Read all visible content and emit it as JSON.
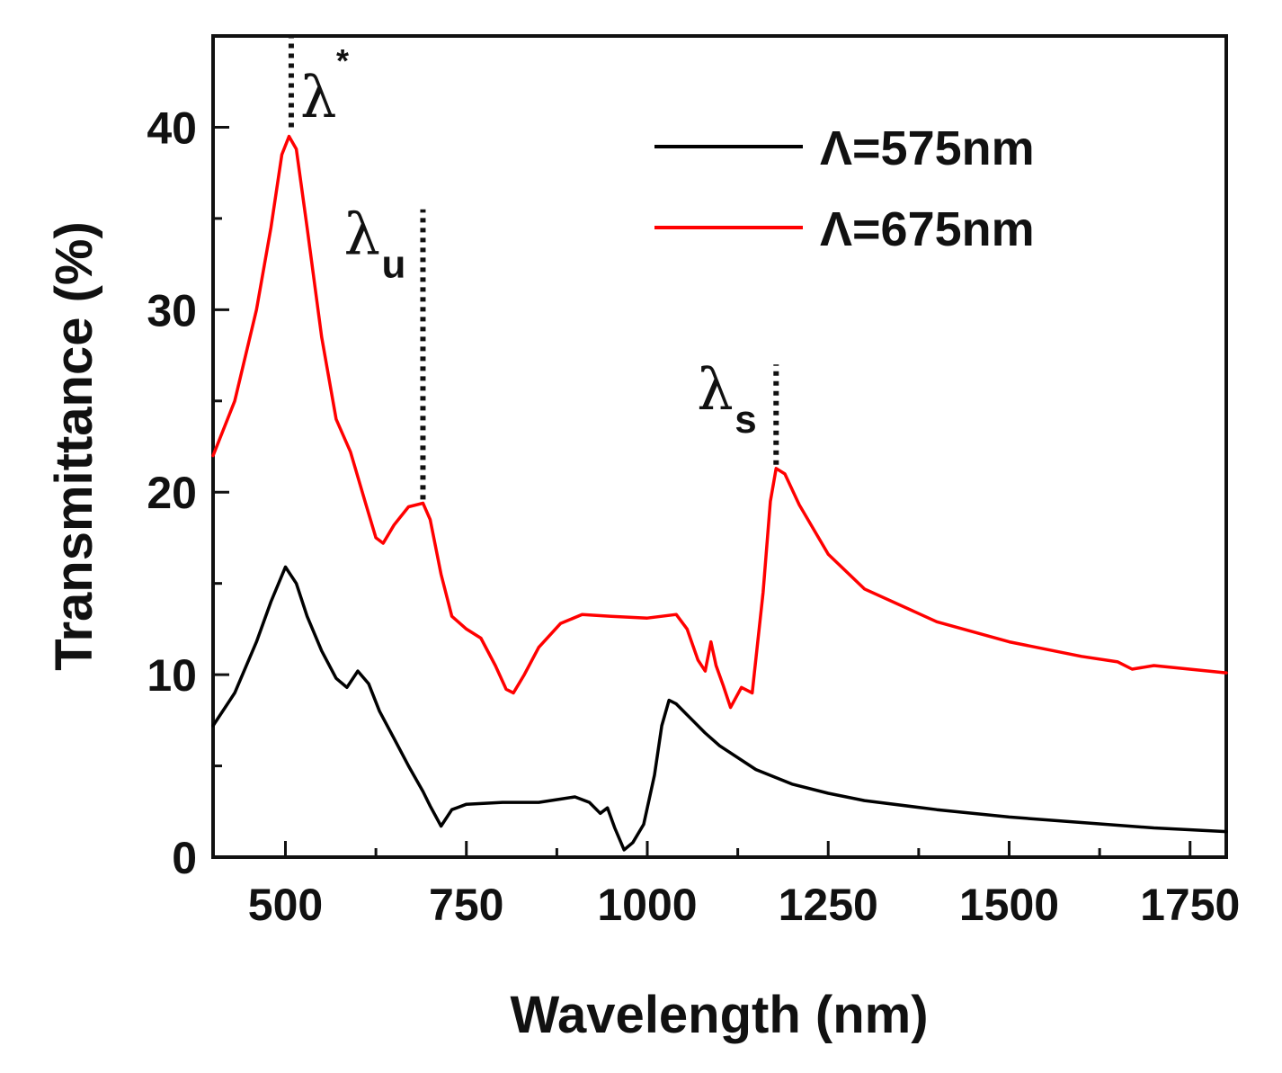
{
  "chart_data": {
    "type": "line",
    "title": "",
    "xlabel": "Wavelength (nm)",
    "ylabel": "Transmittance (%)",
    "xlim": [
      400,
      1800
    ],
    "ylim": [
      0,
      45
    ],
    "x_ticks": [
      500,
      750,
      1000,
      1250,
      1500,
      1750
    ],
    "y_ticks": [
      0,
      10,
      20,
      30,
      40
    ],
    "x_minor_ticks": [
      625,
      875,
      1125,
      1375,
      1625
    ],
    "y_minor_ticks": [
      5,
      15,
      25,
      35
    ],
    "legend_position": "top-right",
    "series": [
      {
        "name": "Λ=575nm",
        "color": "#000000",
        "x": [
          400,
          430,
          460,
          480,
          500,
          515,
          530,
          550,
          570,
          585,
          600,
          615,
          630,
          650,
          670,
          690,
          700,
          715,
          730,
          750,
          800,
          850,
          900,
          920,
          935,
          945,
          955,
          968,
          980,
          995,
          1010,
          1020,
          1030,
          1040,
          1060,
          1080,
          1100,
          1150,
          1200,
          1250,
          1300,
          1400,
          1500,
          1600,
          1700,
          1800
        ],
        "y": [
          7.2,
          9.0,
          11.8,
          14.0,
          15.9,
          15.0,
          13.2,
          11.3,
          9.8,
          9.3,
          10.2,
          9.5,
          8.0,
          6.5,
          5.0,
          3.6,
          2.8,
          1.7,
          2.6,
          2.9,
          3.0,
          3.0,
          3.3,
          3.0,
          2.4,
          2.7,
          1.6,
          0.4,
          0.8,
          1.8,
          4.5,
          7.2,
          8.6,
          8.4,
          7.6,
          6.8,
          6.1,
          4.8,
          4.0,
          3.5,
          3.1,
          2.6,
          2.2,
          1.9,
          1.6,
          1.4
        ]
      },
      {
        "name": "Λ=675nm",
        "color": "#ff0000",
        "x": [
          400,
          430,
          460,
          480,
          495,
          505,
          515,
          530,
          550,
          570,
          590,
          610,
          625,
          635,
          650,
          670,
          690,
          700,
          715,
          730,
          750,
          770,
          790,
          805,
          815,
          830,
          850,
          880,
          910,
          950,
          1000,
          1040,
          1055,
          1070,
          1080,
          1088,
          1095,
          1105,
          1115,
          1130,
          1145,
          1160,
          1170,
          1178,
          1190,
          1210,
          1250,
          1300,
          1400,
          1500,
          1600,
          1650,
          1670,
          1700,
          1800
        ],
        "y": [
          22.0,
          25.0,
          30.0,
          34.5,
          38.5,
          39.5,
          38.8,
          34.5,
          28.5,
          24.0,
          22.2,
          19.5,
          17.5,
          17.2,
          18.2,
          19.2,
          19.4,
          18.5,
          15.5,
          13.2,
          12.5,
          12.0,
          10.5,
          9.2,
          9.0,
          10.0,
          11.5,
          12.8,
          13.3,
          13.2,
          13.1,
          13.3,
          12.5,
          10.8,
          10.2,
          11.8,
          10.5,
          9.4,
          8.2,
          9.3,
          9.0,
          14.5,
          19.5,
          21.3,
          21.0,
          19.3,
          16.6,
          14.7,
          12.9,
          11.8,
          11.0,
          10.7,
          10.3,
          10.5,
          10.1
        ]
      }
    ],
    "annotations": [
      {
        "name": "lambda-star",
        "x": 508,
        "y_from": 40,
        "y_to": 45,
        "symbol": "λ",
        "superscript": "*",
        "subscript": ""
      },
      {
        "name": "lambda-u",
        "x": 690,
        "y_from": 19.6,
        "y_to": 35.5,
        "symbol": "λ",
        "superscript": "",
        "subscript": "u"
      },
      {
        "name": "lambda-s",
        "x": 1178,
        "y_from": 21.5,
        "y_to": 27,
        "symbol": "λ",
        "superscript": "",
        "subscript": "s"
      }
    ]
  }
}
